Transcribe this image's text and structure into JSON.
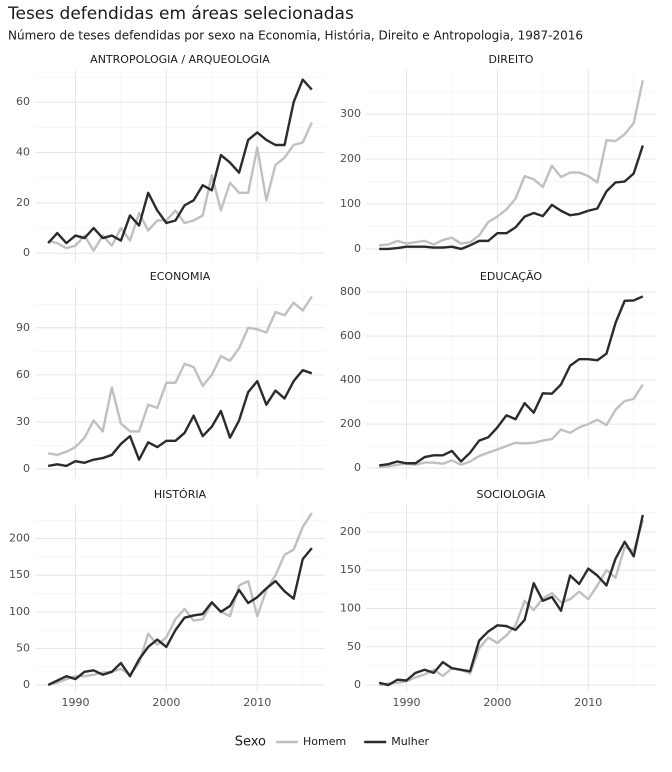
{
  "title": "Teses defendidas em áreas selecionadas",
  "subtitle": "Número de teses defendidas por sexo na Economia, História, Direito e Antropologia, 1987-2016",
  "legend_title": "Sexo",
  "chart_data": [
    {
      "type": "line",
      "title": "ANTROPOLOGIA / ARQUEOLOGIA",
      "x": [
        1987,
        1988,
        1989,
        1990,
        1991,
        1992,
        1993,
        1994,
        1995,
        1996,
        1997,
        1998,
        1999,
        2000,
        2001,
        2002,
        2003,
        2004,
        2005,
        2006,
        2007,
        2008,
        2009,
        2010,
        2011,
        2012,
        2013,
        2014,
        2015,
        2016
      ],
      "xlim": [
        1985.55,
        2017.45
      ],
      "xticks": [
        1990,
        2000,
        2010
      ],
      "ylim": [
        -3.5,
        72.8
      ],
      "yticks": [
        0,
        20,
        40,
        60
      ],
      "grid": true,
      "series": [
        {
          "name": "Homem",
          "color": "#c0c0c0",
          "values": [
            5,
            4,
            2,
            3,
            7,
            1,
            7,
            3,
            10,
            5,
            16,
            9,
            13,
            13,
            17,
            12,
            13,
            15,
            31,
            17,
            28,
            24,
            24,
            42,
            21,
            35,
            38,
            43,
            44,
            52
          ]
        },
        {
          "name": "Mulher",
          "color": "#2b2b2b",
          "values": [
            4,
            8,
            4,
            7,
            6,
            10,
            6,
            7,
            5,
            15,
            11,
            24,
            17,
            12,
            13,
            19,
            21,
            27,
            25,
            39,
            36,
            32,
            45,
            48,
            45,
            43,
            43,
            60,
            69,
            65
          ]
        }
      ]
    },
    {
      "type": "line",
      "title": "DIREITO",
      "x": [
        1987,
        1988,
        1989,
        1990,
        1991,
        1992,
        1993,
        1994,
        1995,
        1996,
        1997,
        1998,
        1999,
        2000,
        2001,
        2002,
        2003,
        2004,
        2005,
        2006,
        2007,
        2008,
        2009,
        2010,
        2011,
        2012,
        2013,
        2014,
        2015,
        2016
      ],
      "xlim": [
        1985.55,
        2017.45
      ],
      "xticks": [
        1990,
        2000,
        2010
      ],
      "ylim": [
        -29,
        398
      ],
      "yticks": [
        0,
        100,
        200,
        300
      ],
      "grid": true,
      "series": [
        {
          "name": "Homem",
          "color": "#c0c0c0",
          "values": [
            8,
            10,
            18,
            12,
            15,
            18,
            10,
            20,
            25,
            12,
            15,
            30,
            60,
            72,
            88,
            112,
            162,
            155,
            138,
            185,
            160,
            170,
            170,
            162,
            148,
            242,
            240,
            255,
            280,
            375
          ]
        },
        {
          "name": "Mulher",
          "color": "#2b2b2b",
          "values": [
            0,
            0,
            2,
            5,
            5,
            5,
            3,
            3,
            5,
            0,
            8,
            18,
            18,
            35,
            35,
            48,
            72,
            80,
            73,
            98,
            85,
            75,
            78,
            85,
            90,
            128,
            148,
            150,
            168,
            230
          ]
        }
      ]
    },
    {
      "type": "line",
      "title": "ECONOMIA",
      "x": [
        1987,
        1988,
        1989,
        1990,
        1991,
        1992,
        1993,
        1994,
        1995,
        1996,
        1997,
        1998,
        1999,
        2000,
        2001,
        2002,
        2003,
        2004,
        2005,
        2006,
        2007,
        2008,
        2009,
        2010,
        2011,
        2012,
        2013,
        2014,
        2015,
        2016
      ],
      "xlim": [
        1985.55,
        2017.45
      ],
      "xticks": [
        1990,
        2000,
        2010
      ],
      "ylim": [
        -5.7,
        116
      ],
      "yticks": [
        0,
        30,
        60,
        90
      ],
      "grid": true,
      "series": [
        {
          "name": "Homem",
          "color": "#c0c0c0",
          "values": [
            10,
            9,
            11,
            14,
            20,
            31,
            24,
            52,
            29,
            24,
            24,
            41,
            39,
            55,
            55,
            67,
            65,
            53,
            60,
            72,
            69,
            77,
            90,
            89,
            87,
            100,
            98,
            106,
            101,
            110
          ]
        },
        {
          "name": "Mulher",
          "color": "#2b2b2b",
          "values": [
            2,
            3,
            2,
            5,
            4,
            6,
            7,
            9,
            16,
            21,
            6,
            17,
            14,
            18,
            18,
            23,
            34,
            21,
            27,
            37,
            20,
            31,
            49,
            56,
            41,
            50,
            45,
            56,
            63,
            61
          ]
        }
      ]
    },
    {
      "type": "line",
      "title": "EDUCAÇÃO",
      "x": [
        1987,
        1988,
        1989,
        1990,
        1991,
        1992,
        1993,
        1994,
        1995,
        1996,
        1997,
        1998,
        1999,
        2000,
        2001,
        2002,
        2003,
        2004,
        2005,
        2006,
        2007,
        2008,
        2009,
        2010,
        2011,
        2012,
        2013,
        2014,
        2015,
        2016
      ],
      "xlim": [
        1985.55,
        2017.45
      ],
      "xticks": [
        1990,
        2000,
        2010
      ],
      "ylim": [
        -45,
        823
      ],
      "yticks": [
        0,
        200,
        400,
        600,
        800
      ],
      "grid": true,
      "series": [
        {
          "name": "Homem",
          "color": "#c0c0c0",
          "values": [
            5,
            8,
            15,
            20,
            15,
            25,
            25,
            20,
            35,
            15,
            30,
            55,
            70,
            85,
            100,
            115,
            112,
            115,
            125,
            132,
            175,
            160,
            185,
            200,
            220,
            195,
            265,
            305,
            315,
            380
          ]
        },
        {
          "name": "Mulher",
          "color": "#2b2b2b",
          "values": [
            12,
            18,
            30,
            22,
            22,
            50,
            58,
            58,
            78,
            30,
            70,
            125,
            140,
            185,
            240,
            222,
            295,
            252,
            340,
            338,
            380,
            465,
            495,
            495,
            490,
            520,
            660,
            760,
            762,
            780
          ]
        }
      ]
    },
    {
      "type": "line",
      "title": "HISTÓRIA",
      "x": [
        1987,
        1988,
        1989,
        1990,
        1991,
        1992,
        1993,
        1994,
        1995,
        1996,
        1997,
        1998,
        1999,
        2000,
        2001,
        2002,
        2003,
        2004,
        2005,
        2006,
        2007,
        2008,
        2009,
        2010,
        2011,
        2012,
        2013,
        2014,
        2015,
        2016
      ],
      "xlim": [
        1985.55,
        2017.45
      ],
      "xticks": [
        1990,
        2000,
        2010
      ],
      "ylim": [
        -9.6,
        246
      ],
      "yticks": [
        0,
        50,
        100,
        150,
        200
      ],
      "grid": true,
      "series": [
        {
          "name": "Homem",
          "color": "#c0c0c0",
          "values": [
            0,
            3,
            8,
            12,
            12,
            14,
            17,
            18,
            22,
            14,
            30,
            70,
            55,
            65,
            90,
            104,
            88,
            90,
            112,
            100,
            94,
            136,
            142,
            94,
            130,
            150,
            178,
            185,
            216,
            235
          ]
        },
        {
          "name": "Mulher",
          "color": "#2b2b2b",
          "values": [
            0,
            6,
            12,
            8,
            18,
            20,
            14,
            18,
            30,
            12,
            35,
            52,
            62,
            52,
            75,
            92,
            95,
            97,
            113,
            100,
            108,
            130,
            112,
            120,
            132,
            142,
            128,
            118,
            172,
            187
          ]
        }
      ]
    },
    {
      "type": "line",
      "title": "SOCIOLOGIA",
      "x": [
        1987,
        1988,
        1989,
        1990,
        1991,
        1992,
        1993,
        1994,
        1995,
        1996,
        1997,
        1998,
        1999,
        2000,
        2001,
        2002,
        2003,
        2004,
        2005,
        2006,
        2007,
        2008,
        2009,
        2010,
        2011,
        2012,
        2013,
        2014,
        2015,
        2016
      ],
      "xlim": [
        1985.55,
        2017.45
      ],
      "xticks": [
        1990,
        2000,
        2010
      ],
      "ylim": [
        -9,
        235
      ],
      "yticks": [
        0,
        50,
        100,
        150,
        200
      ],
      "grid": true,
      "series": [
        {
          "name": "Homem",
          "color": "#c0c0c0",
          "values": [
            0,
            2,
            3,
            5,
            10,
            14,
            20,
            12,
            22,
            20,
            15,
            48,
            62,
            55,
            65,
            78,
            110,
            98,
            113,
            120,
            108,
            112,
            122,
            112,
            130,
            150,
            140,
            180,
            175,
            215
          ]
        },
        {
          "name": "Mulher",
          "color": "#2b2b2b",
          "values": [
            3,
            0,
            7,
            6,
            16,
            20,
            16,
            30,
            22,
            20,
            18,
            58,
            70,
            78,
            77,
            72,
            85,
            133,
            110,
            115,
            97,
            143,
            132,
            152,
            143,
            130,
            165,
            187,
            168,
            222
          ]
        }
      ]
    }
  ]
}
